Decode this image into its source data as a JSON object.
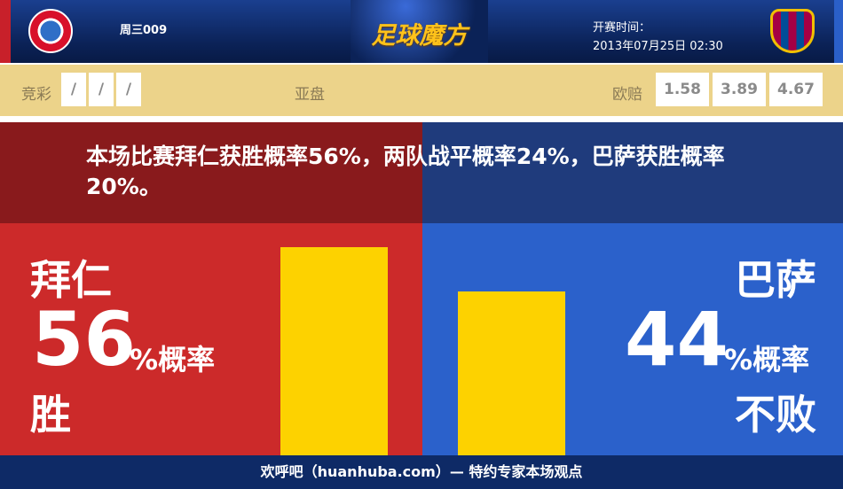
{
  "header": {
    "match_code": "周三009",
    "brand": "足球魔方",
    "kickoff_label": "开赛时间：",
    "kickoff_time": "2013年07月25日 02:30",
    "home_crest": "FC Bayern München",
    "away_crest": "FCB"
  },
  "odds": {
    "jingcai_label": "竞彩",
    "jingcai": [
      "/",
      "/",
      "/"
    ],
    "asian_label": "亚盘",
    "euro_label": "欧赔",
    "euro": [
      "1.58",
      "3.89",
      "4.67"
    ]
  },
  "summary": "本场比赛拜仁获胜概率56%，两队战平概率24%，巴萨获胜概率20%。",
  "home": {
    "name": "拜仁",
    "pct": "56",
    "pct_suffix": "%概率",
    "outcome": "胜",
    "bar_value": 56,
    "color": "#cc2a2a"
  },
  "away": {
    "name": "巴萨",
    "pct": "44",
    "pct_suffix": "%概率",
    "outcome": "不败",
    "bar_value": 44,
    "color": "#2b61cb"
  },
  "bar_color": "#fdd200",
  "footer": "欢呼吧（huanhuba.com）— 特约专家本场观点"
}
